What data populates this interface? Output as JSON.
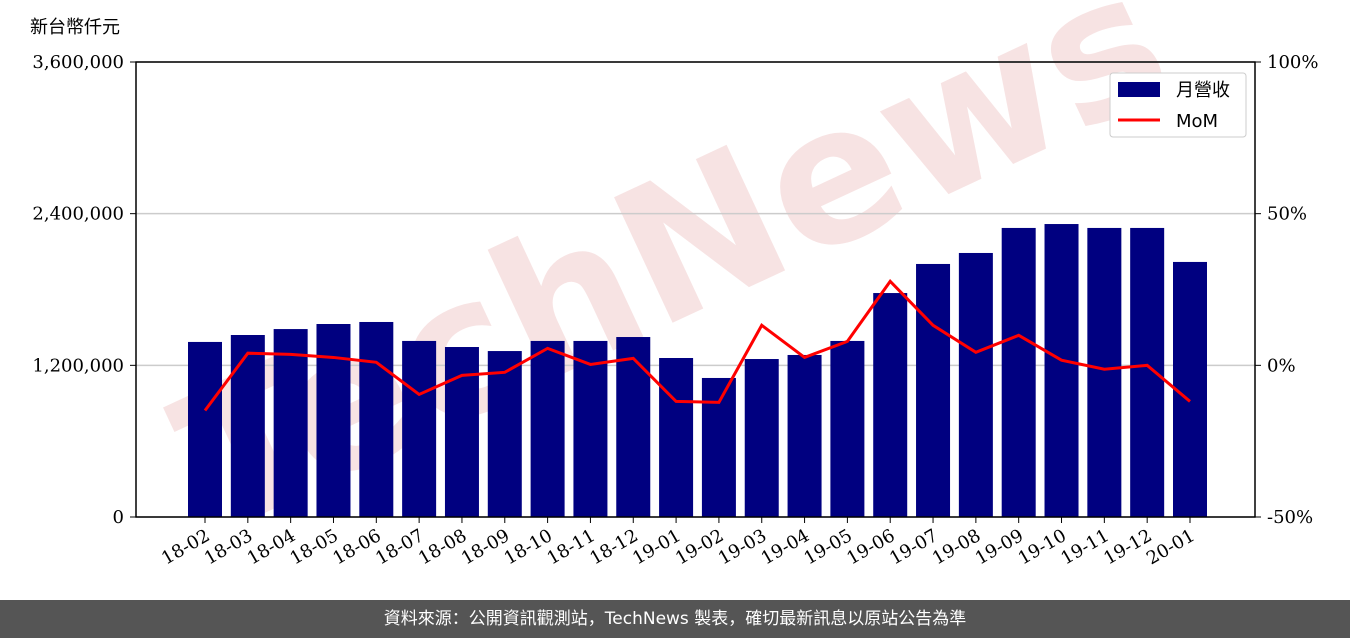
{
  "chart_data": {
    "type": "bar-line",
    "y_label": "新台幣仟元",
    "watermark": "TechNews",
    "categories": [
      "18-02",
      "18-03",
      "18-04",
      "18-05",
      "18-06",
      "18-07",
      "18-08",
      "18-09",
      "18-10",
      "18-11",
      "18-12",
      "19-01",
      "19-02",
      "19-03",
      "19-04",
      "19-05",
      "19-06",
      "19-07",
      "19-08",
      "19-09",
      "19-10",
      "19-11",
      "19-12",
      "20-01"
    ],
    "series": [
      {
        "name": "月營收",
        "color": "#000080",
        "type": "bar",
        "values": [
          1385000,
          1440000,
          1487000,
          1527000,
          1543000,
          1393000,
          1345000,
          1313000,
          1393000,
          1393000,
          1424000,
          1258000,
          1100000,
          1250000,
          1282000,
          1393000,
          1772000,
          2002000,
          2089000,
          2287000,
          2318000,
          2287000,
          2287000,
          2018000
        ]
      },
      {
        "name": "MoM",
        "color": "#ff0000",
        "type": "line",
        "axis": "y2",
        "values": [
          -14.9,
          4,
          3.6,
          2.6,
          1,
          -9.6,
          -3.3,
          -2.3,
          5.6,
          0.3,
          2.3,
          -11.9,
          -12.2,
          13.2,
          2.6,
          7.9,
          27.7,
          13.2,
          4.3,
          9.9,
          1.7,
          -1.3,
          0,
          -11.9
        ]
      }
    ],
    "ylim": [
      0,
      3600000
    ],
    "yticks": [
      0,
      {
        "value": 1200000,
        "label": "1,200,000"
      },
      {
        "value": 2400000,
        "label": "2,400,000"
      },
      {
        "value": 3600000,
        "label": "3,600,000"
      }
    ],
    "y2lim": [
      -50,
      100
    ],
    "y2ticks": [
      {
        "value": -50,
        "label": "-50%"
      },
      {
        "value": 0,
        "label": "0%"
      },
      {
        "value": 50,
        "label": "50%"
      },
      {
        "value": 100,
        "label": "100%"
      }
    ],
    "grid": true,
    "legend": "upper right"
  },
  "footer": "資料來源：公開資訊觀測站，TechNews 製表，確切最新訊息以原站公告為準"
}
